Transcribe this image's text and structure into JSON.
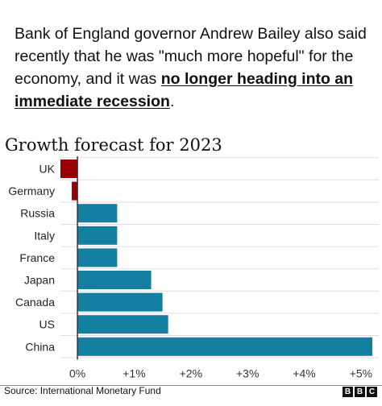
{
  "intro": {
    "part1": "Bank of England governor Andrew Bailey also said recently that he was \"much more hopeful\" for the economy, and it was ",
    "emphasis": "no longer heading into an immediate recession",
    "part2": "."
  },
  "chart_data": {
    "type": "bar",
    "orientation": "horizontal",
    "title": "Growth forecast for 2023",
    "categories": [
      "UK",
      "Germany",
      "Russia",
      "Italy",
      "France",
      "Japan",
      "Canada",
      "US",
      "China"
    ],
    "values": [
      -0.3,
      -0.1,
      0.7,
      0.7,
      0.7,
      1.3,
      1.5,
      1.6,
      5.2
    ],
    "xlim": [
      -0.3,
      5.2
    ],
    "xticks": [
      0,
      1,
      2,
      3,
      4,
      5
    ],
    "xtick_labels": [
      "0%",
      "+1%",
      "+2%",
      "+3%",
      "+4%",
      "+5%"
    ],
    "grid": true,
    "colors": {
      "positive": "#1380A1",
      "negative": "#990000"
    }
  },
  "footer": {
    "source": "Source: International Monetary Fund",
    "logo_letters": [
      "B",
      "B",
      "C"
    ]
  }
}
